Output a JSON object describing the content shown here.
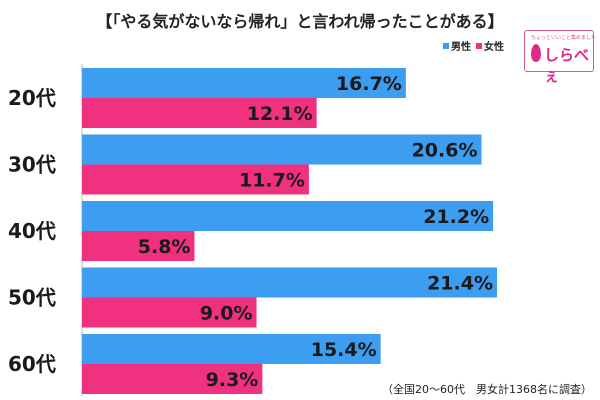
{
  "title": "【「やる気がないなら帰れ」と言われ帰ったことがある】",
  "legend": [
    {
      "name": "男性",
      "color": "#3d9df0"
    },
    {
      "name": "女性",
      "color": "#f0317f"
    }
  ],
  "logo": {
    "tagline": "ちょっといいこと集めました",
    "brand": "しらべぇ"
  },
  "note": "（全国20～60代　男女計1368名に調査）",
  "chart_data": {
    "type": "bar",
    "orientation": "horizontal",
    "categories": [
      "20代",
      "30代",
      "40代",
      "50代",
      "60代"
    ],
    "series": [
      {
        "name": "男性",
        "color": "#3d9df0",
        "values": [
          16.7,
          20.6,
          21.2,
          21.4,
          15.4
        ],
        "labels": [
          "16.7%",
          "20.6%",
          "21.2%",
          "21.4%",
          "15.4%"
        ]
      },
      {
        "name": "女性",
        "color": "#f0317f",
        "values": [
          12.1,
          11.7,
          5.8,
          9.0,
          9.3
        ],
        "labels": [
          "12.1%",
          "11.7%",
          "5.8%",
          "9.0%",
          "9.3%"
        ]
      }
    ],
    "xlim": [
      0,
      25
    ],
    "grid": false,
    "legend_position": "top-right"
  }
}
